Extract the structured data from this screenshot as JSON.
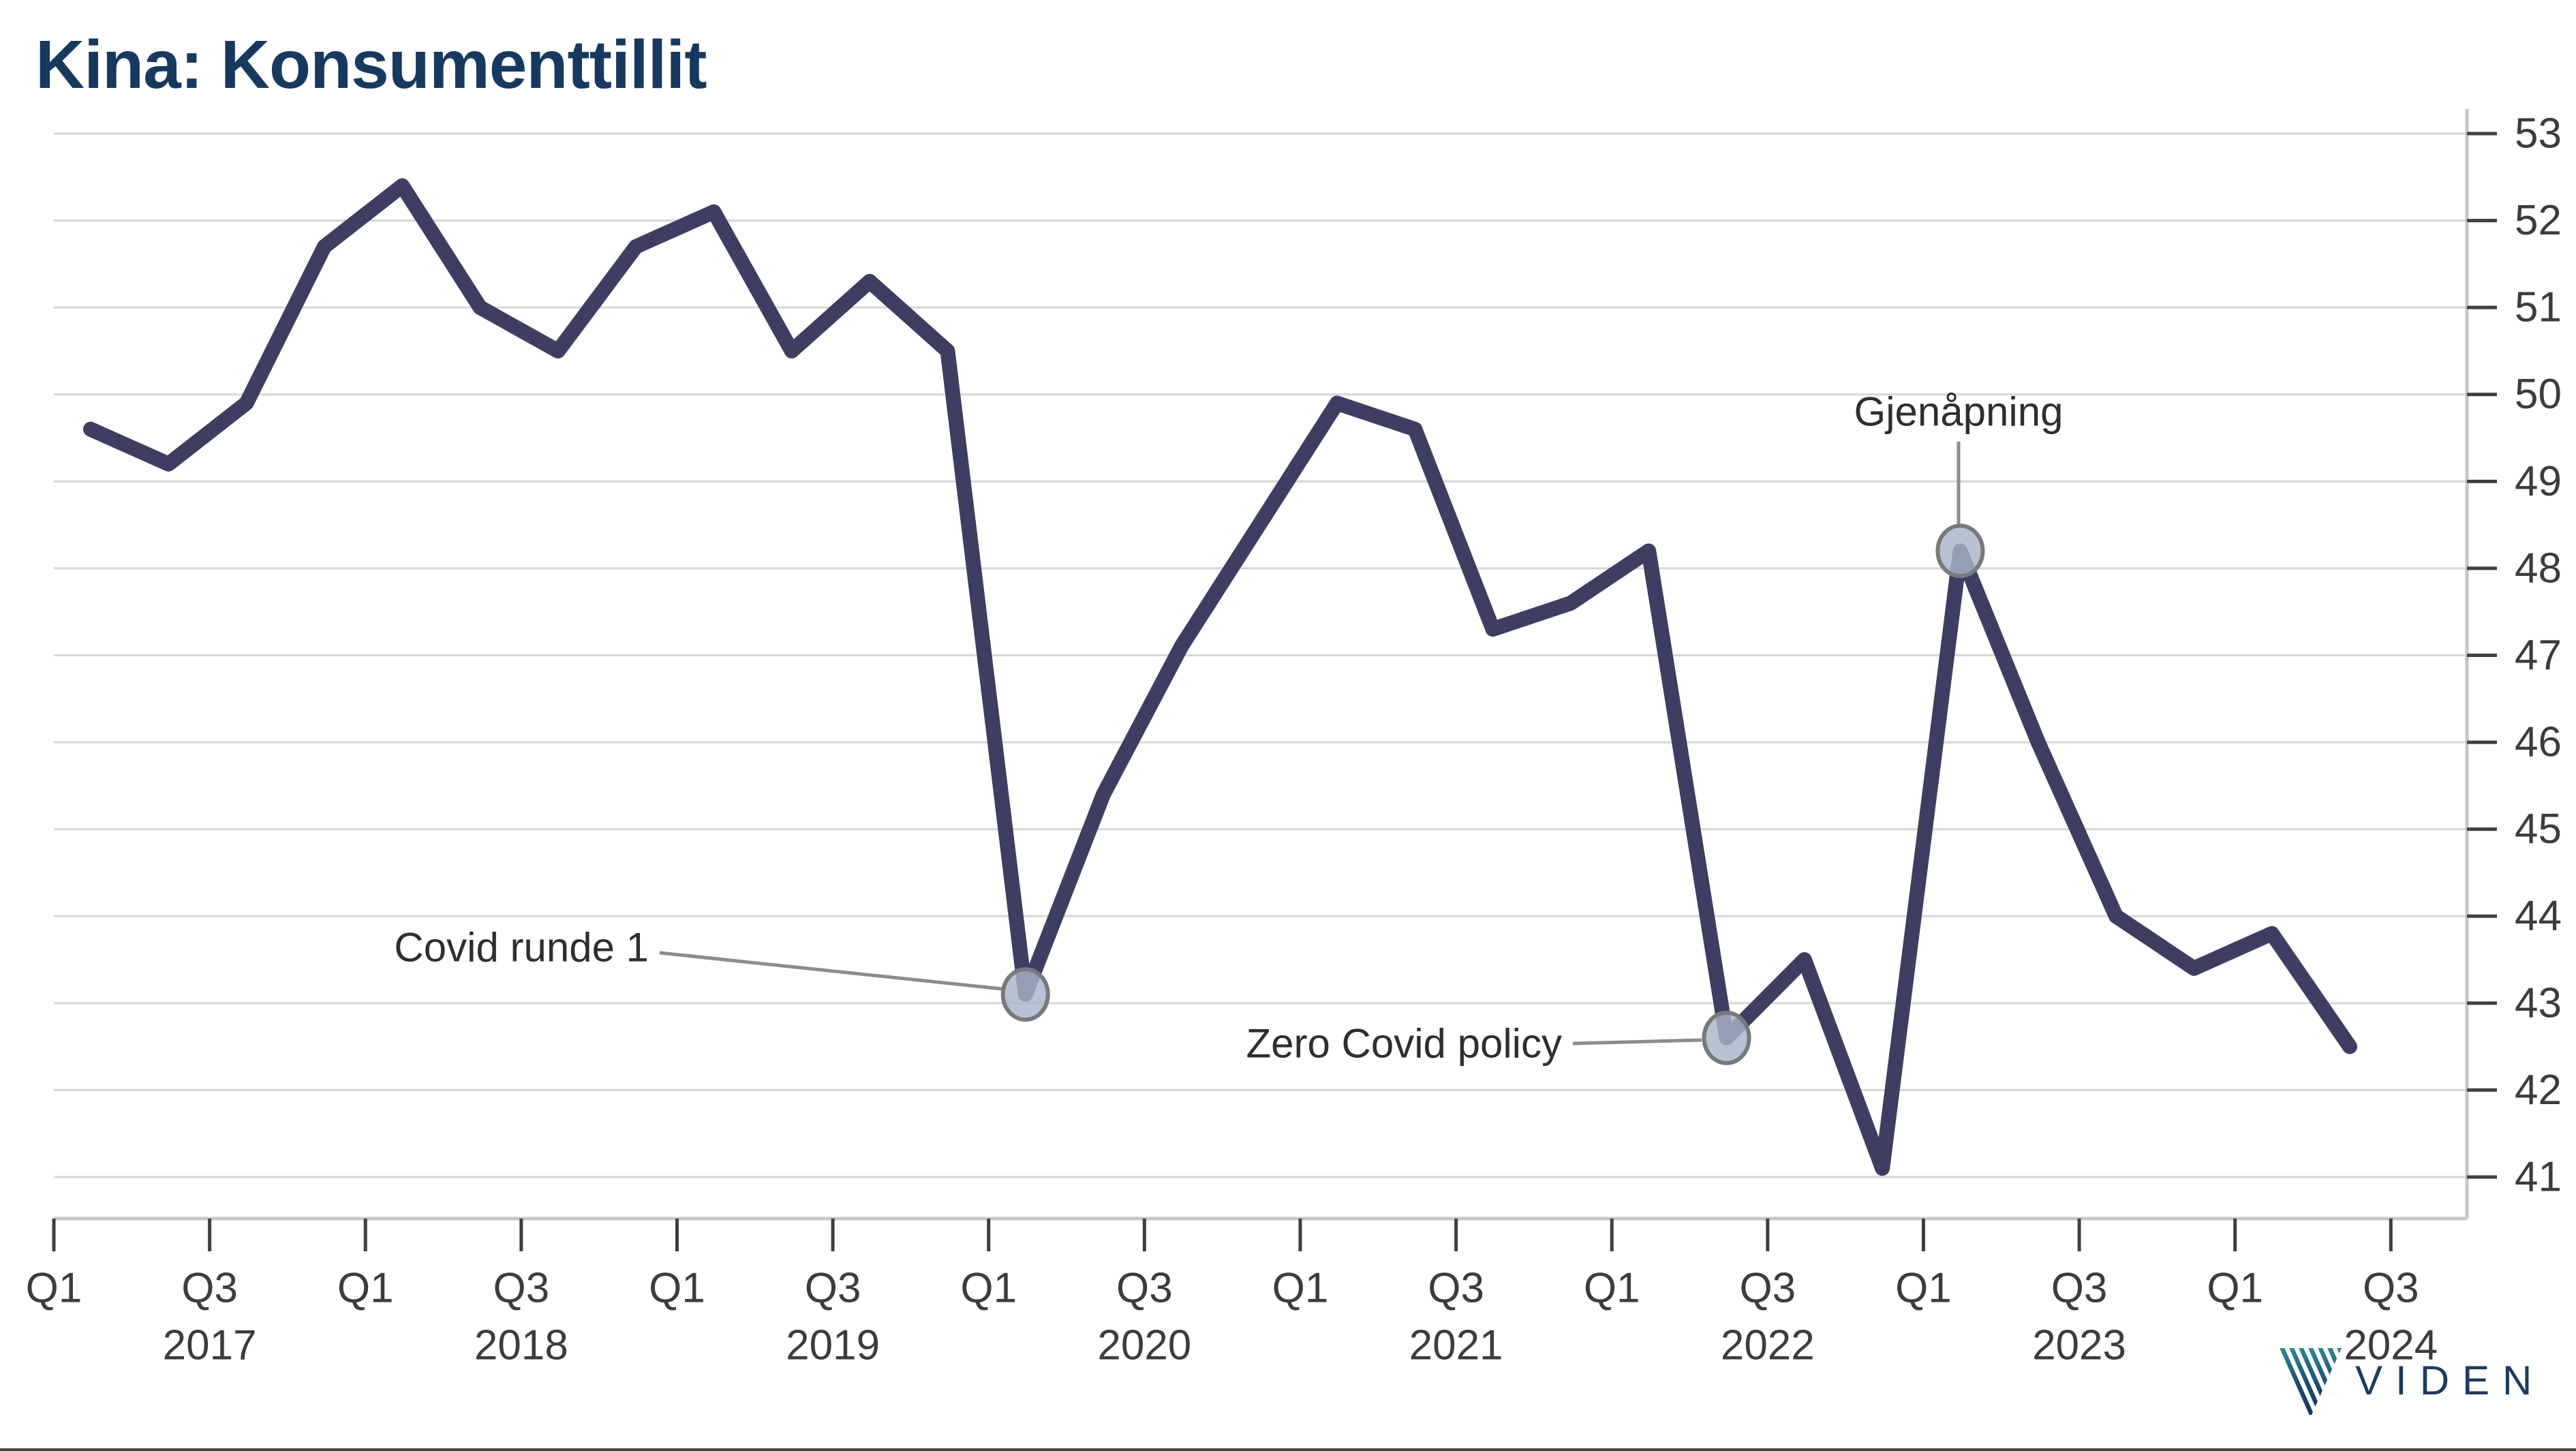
{
  "chart_data": {
    "type": "line",
    "title": "Kina: Konsumenttillit",
    "series_name": "Konsumenttillit",
    "x": [
      "2017 Q1",
      "2017 Q2",
      "2017 Q3",
      "2017 Q4",
      "2018 Q1",
      "2018 Q2",
      "2018 Q3",
      "2018 Q4",
      "2019 Q1",
      "2019 Q2",
      "2019 Q3",
      "2019 Q4",
      "2020 Q1",
      "2020 Q2",
      "2020 Q3",
      "2020 Q4",
      "2021 Q1",
      "2021 Q2",
      "2021 Q3",
      "2021 Q4",
      "2022 Q1",
      "2022 Q2",
      "2022 Q3",
      "2022 Q4",
      "2023 Q1",
      "2023 Q2",
      "2023 Q3",
      "2023 Q4",
      "2024 Q1",
      "2024 Q2"
    ],
    "values": [
      49.6,
      49.2,
      49.9,
      51.7,
      52.4,
      51.0,
      50.5,
      51.7,
      52.1,
      50.5,
      51.3,
      50.5,
      43.1,
      45.4,
      47.1,
      48.5,
      49.9,
      49.6,
      47.3,
      47.6,
      48.2,
      42.6,
      43.5,
      41.1,
      48.2,
      46.0,
      44.0,
      43.4,
      43.8,
      42.5
    ],
    "ylim": [
      41,
      53
    ],
    "y_ticks": [
      41,
      42,
      43,
      44,
      45,
      46,
      47,
      48,
      49,
      50,
      51,
      52,
      53
    ],
    "x_ticks": [
      {
        "label": "Q1",
        "year": ""
      },
      {
        "label": "Q3",
        "year": "2017"
      },
      {
        "label": "Q1",
        "year": ""
      },
      {
        "label": "Q3",
        "year": "2018"
      },
      {
        "label": "Q1",
        "year": ""
      },
      {
        "label": "Q3",
        "year": "2019"
      },
      {
        "label": "Q1",
        "year": ""
      },
      {
        "label": "Q3",
        "year": "2020"
      },
      {
        "label": "Q1",
        "year": ""
      },
      {
        "label": "Q3",
        "year": "2021"
      },
      {
        "label": "Q1",
        "year": ""
      },
      {
        "label": "Q3",
        "year": "2022"
      },
      {
        "label": "Q1",
        "year": ""
      },
      {
        "label": "Q3",
        "year": "2023"
      },
      {
        "label": "Q1",
        "year": ""
      },
      {
        "label": "Q3",
        "year": "2024"
      }
    ],
    "grid": "horizontal-integer",
    "legend_position": "none",
    "line_color": "#3e3d62"
  },
  "annotations": [
    {
      "id": "covid-runde-1",
      "label": "Covid runde 1",
      "x": "2020 Q1",
      "index": 12,
      "value": 43.1
    },
    {
      "id": "zero-covid",
      "label": "Zero Covid policy",
      "x": "2022 Q2",
      "index": 21,
      "value": 42.6
    },
    {
      "id": "gjenapning",
      "label": "Gjenåpning",
      "x": "2023 Q1",
      "index": 24,
      "value": 48.2
    }
  ],
  "colors": {
    "title": "#17395f",
    "line": "#3e3d62",
    "grid": "#d6d6d6",
    "spine": "#c6c6c6",
    "tick": "#3f3f3f",
    "marker_fill": "#a7b5c8",
    "marker_stroke": "#78797b",
    "leader": "#8c8c8c",
    "logo": "#1d3b5e",
    "logo_teal": "#2f8f96"
  },
  "logo": {
    "text": "VIDEN"
  }
}
